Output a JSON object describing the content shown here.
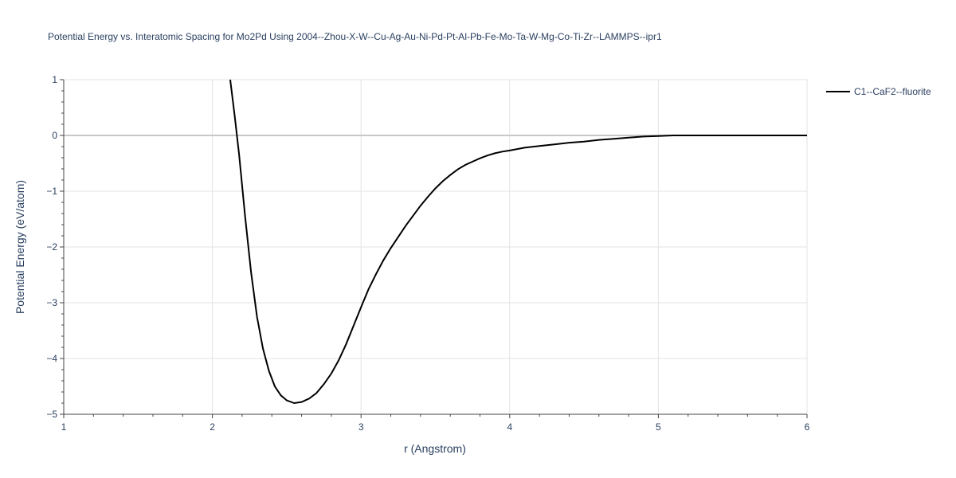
{
  "chart_data": {
    "type": "line",
    "title": "Potential Energy vs. Interatomic Spacing for Mo2Pd Using 2004--Zhou-X-W--Cu-Ag-Au-Ni-Pd-Pt-Al-Pb-Fe-Mo-Ta-W-Mg-Co-Ti-Zr--LAMMPS--ipr1",
    "xlabel": "r (Angstrom)",
    "ylabel": "Potential Energy (eV/atom)",
    "xlim": [
      1,
      6
    ],
    "ylim": [
      -5,
      1
    ],
    "x_ticks": [
      1,
      2,
      3,
      4,
      5,
      6
    ],
    "x_tick_labels": [
      "1",
      "2",
      "3",
      "4",
      "5",
      "6"
    ],
    "y_ticks": [
      -5,
      -4,
      -3,
      -2,
      -1,
      0,
      1
    ],
    "y_tick_labels": [
      "−5",
      "−4",
      "−3",
      "−2",
      "−1",
      "0",
      "1"
    ],
    "grid": true,
    "legend_position": "top-right",
    "series": [
      {
        "name": "C1--CaF2--fluorite",
        "color": "#000000",
        "x": [
          2.12,
          2.15,
          2.18,
          2.22,
          2.26,
          2.3,
          2.34,
          2.38,
          2.42,
          2.46,
          2.5,
          2.55,
          2.6,
          2.65,
          2.7,
          2.75,
          2.8,
          2.85,
          2.9,
          2.95,
          3.0,
          3.05,
          3.1,
          3.15,
          3.2,
          3.25,
          3.3,
          3.35,
          3.4,
          3.45,
          3.5,
          3.55,
          3.6,
          3.65,
          3.7,
          3.75,
          3.8,
          3.85,
          3.9,
          3.95,
          4.0,
          4.1,
          4.2,
          4.3,
          4.4,
          4.5,
          4.6,
          4.7,
          4.8,
          4.9,
          5.0,
          5.1,
          5.15,
          5.3,
          5.5,
          6.0
        ],
        "y": [
          1.0,
          0.35,
          -0.35,
          -1.45,
          -2.45,
          -3.25,
          -3.82,
          -4.22,
          -4.5,
          -4.66,
          -4.75,
          -4.8,
          -4.78,
          -4.72,
          -4.62,
          -4.46,
          -4.27,
          -4.03,
          -3.74,
          -3.41,
          -3.08,
          -2.76,
          -2.49,
          -2.24,
          -2.02,
          -1.82,
          -1.62,
          -1.44,
          -1.26,
          -1.1,
          -0.95,
          -0.82,
          -0.71,
          -0.61,
          -0.53,
          -0.47,
          -0.41,
          -0.36,
          -0.32,
          -0.29,
          -0.27,
          -0.22,
          -0.19,
          -0.16,
          -0.13,
          -0.11,
          -0.08,
          -0.06,
          -0.04,
          -0.02,
          -0.01,
          0.0,
          0.0,
          0.0,
          0.0,
          0.0
        ]
      }
    ]
  }
}
